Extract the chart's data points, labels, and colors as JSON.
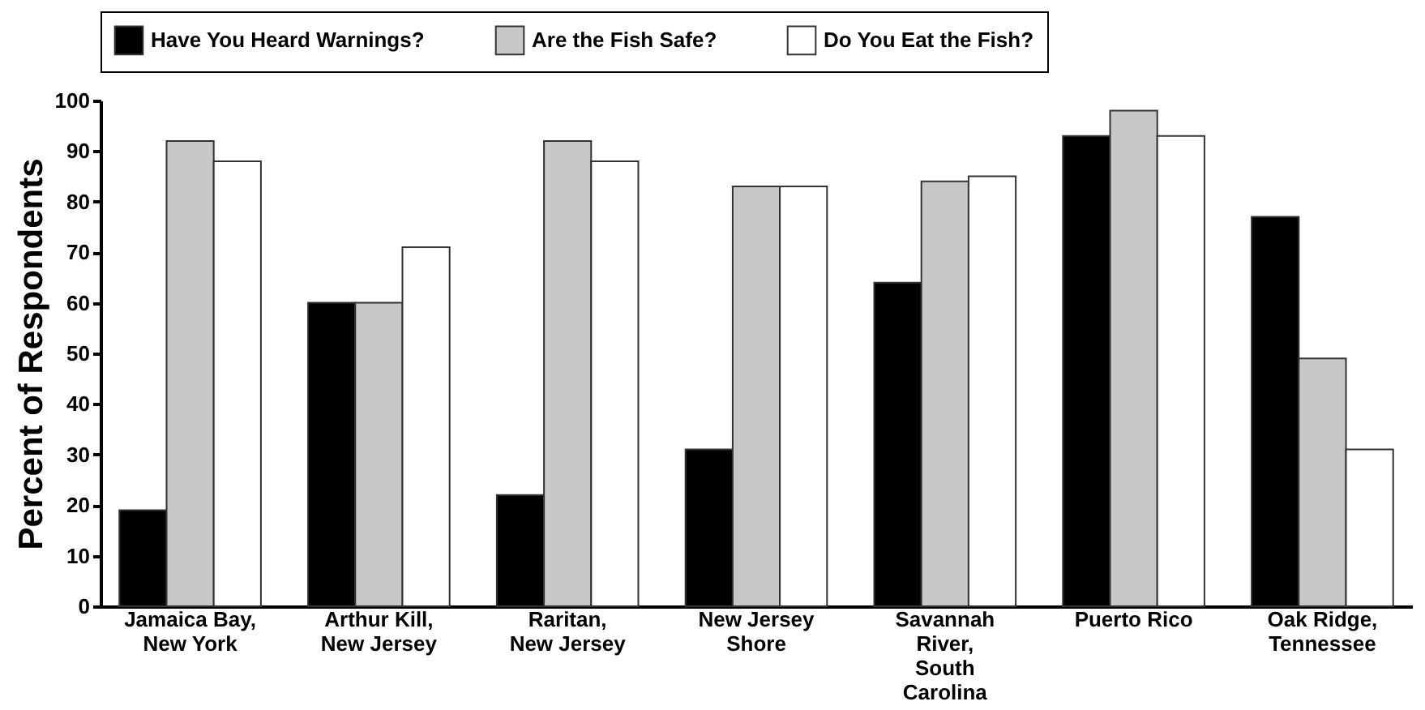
{
  "chart_data": {
    "type": "bar",
    "ylabel": "Percent of Respondents",
    "categories": [
      "Jamaica Bay, New York",
      "Arthur Kill, New Jersey",
      "Raritan, New Jersey",
      "New Jersey Shore",
      "Savannah River, South Carolina",
      "Puerto Rico",
      "Oak Ridge, Tennessee"
    ],
    "series": [
      {
        "name": "Have You Heard Warnings?",
        "color": "#000000",
        "values": [
          19,
          60,
          22,
          31,
          64,
          93,
          77
        ]
      },
      {
        "name": "Are the Fish Safe?",
        "color": "#c8c8c8",
        "values": [
          92,
          60,
          92,
          83,
          84,
          98,
          49
        ]
      },
      {
        "name": "Do You Eat the Fish?",
        "color": "#ffffff",
        "values": [
          88,
          71,
          88,
          83,
          85,
          93,
          31
        ]
      }
    ],
    "ylim": [
      0,
      100
    ],
    "yticks": [
      0,
      10,
      20,
      30,
      40,
      50,
      60,
      70,
      80,
      90,
      100
    ],
    "grid": false,
    "legend": "top"
  }
}
